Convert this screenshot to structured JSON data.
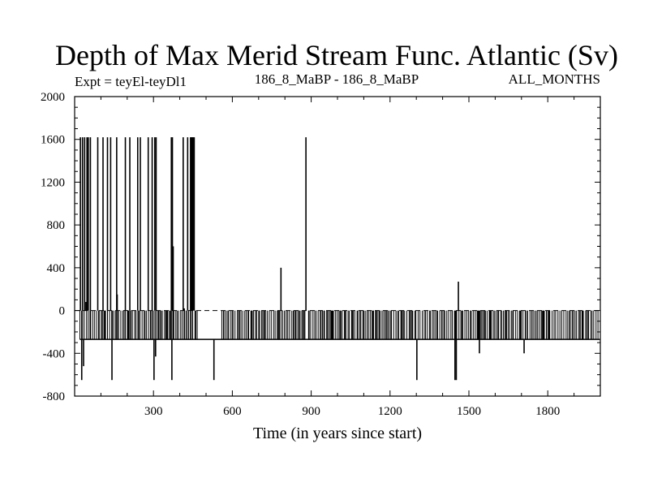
{
  "chart_data": {
    "type": "line",
    "title": "Depth of Max Merid Stream Func. Atlantic (Sv)",
    "expt_label": "Expt = teyEl-teyDl1",
    "period_label": "186_8_MaBP - 186_8_MaBP",
    "season_label": "ALL_MONTHS",
    "xlabel": "Time (in years since start)",
    "ylabel": "",
    "xlim": [
      0,
      2000
    ],
    "ylim": [
      -800,
      2000
    ],
    "x_ticks": [
      300,
      600,
      900,
      1200,
      1500,
      1800
    ],
    "y_ticks": [
      -800,
      -400,
      0,
      400,
      800,
      1200,
      1600,
      2000
    ],
    "zero_line": 0,
    "series": [
      {
        "name": "depth",
        "baseline_values": [
          -270,
          0
        ],
        "x_start": 20,
        "x_end": 1998,
        "spikes": [
          {
            "x": 22,
            "y": 1620
          },
          {
            "x": 27,
            "y": -650
          },
          {
            "x": 30,
            "y": 1620
          },
          {
            "x": 34,
            "y": -520
          },
          {
            "x": 38,
            "y": 1620
          },
          {
            "x": 43,
            "y": 80
          },
          {
            "x": 47,
            "y": 1620
          },
          {
            "x": 52,
            "y": 1620
          },
          {
            "x": 60,
            "y": 1620
          },
          {
            "x": 88,
            "y": 1620
          },
          {
            "x": 108,
            "y": 1620
          },
          {
            "x": 125,
            "y": 1620
          },
          {
            "x": 137,
            "y": 1620
          },
          {
            "x": 142,
            "y": -650
          },
          {
            "x": 160,
            "y": 1620
          },
          {
            "x": 162,
            "y": 150
          },
          {
            "x": 193,
            "y": 1620
          },
          {
            "x": 210,
            "y": 1620
          },
          {
            "x": 240,
            "y": 1620
          },
          {
            "x": 250,
            "y": 1620
          },
          {
            "x": 280,
            "y": 1620
          },
          {
            "x": 295,
            "y": 1620
          },
          {
            "x": 302,
            "y": -650
          },
          {
            "x": 305,
            "y": 1620
          },
          {
            "x": 308,
            "y": -430
          },
          {
            "x": 310,
            "y": 1620
          },
          {
            "x": 368,
            "y": 1620
          },
          {
            "x": 370,
            "y": -650
          },
          {
            "x": 372,
            "y": 1620
          },
          {
            "x": 375,
            "y": 600
          },
          {
            "x": 413,
            "y": 1620
          },
          {
            "x": 417,
            "y": 20
          },
          {
            "x": 430,
            "y": 1620
          },
          {
            "x": 441,
            "y": 1620
          },
          {
            "x": 444,
            "y": 1620
          },
          {
            "x": 448,
            "y": 1620
          },
          {
            "x": 451,
            "y": 1620
          },
          {
            "x": 455,
            "y": 1620
          },
          {
            "x": 530,
            "y": -650
          },
          {
            "x": 785,
            "y": 400
          },
          {
            "x": 880,
            "y": 1620
          },
          {
            "x": 1302,
            "y": -650
          },
          {
            "x": 1447,
            "y": -650
          },
          {
            "x": 1452,
            "y": -650
          },
          {
            "x": 1460,
            "y": 270
          },
          {
            "x": 1540,
            "y": -400
          },
          {
            "x": 1710,
            "y": -400
          }
        ]
      }
    ]
  }
}
